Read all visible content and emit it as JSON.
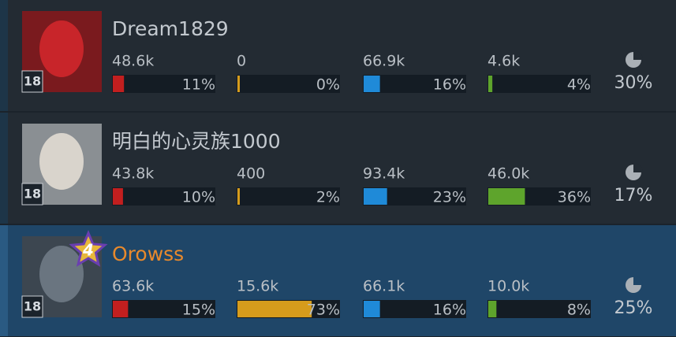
{
  "players": [
    {
      "name": "Dream1829",
      "level": "18",
      "stats": [
        {
          "value": "48.6k",
          "percent": 11,
          "percent_label": "11%"
        },
        {
          "value": "0",
          "percent": 0,
          "percent_label": "0%"
        },
        {
          "value": "66.9k",
          "percent": 16,
          "percent_label": "16%"
        },
        {
          "value": "4.6k",
          "percent": 4,
          "percent_label": "4%"
        }
      ],
      "share": "30%"
    },
    {
      "name": "明白的心灵族1000",
      "level": "18",
      "stats": [
        {
          "value": "43.8k",
          "percent": 10,
          "percent_label": "10%"
        },
        {
          "value": "400",
          "percent": 2,
          "percent_label": "2%"
        },
        {
          "value": "93.4k",
          "percent": 23,
          "percent_label": "23%"
        },
        {
          "value": "46.0k",
          "percent": 36,
          "percent_label": "36%"
        }
      ],
      "share": "17%"
    },
    {
      "name": "Orowss",
      "level": "18",
      "badge": "4",
      "stats": [
        {
          "value": "63.6k",
          "percent": 15,
          "percent_label": "15%"
        },
        {
          "value": "15.6k",
          "percent": 73,
          "percent_label": "73%"
        },
        {
          "value": "66.1k",
          "percent": 16,
          "percent_label": "16%"
        },
        {
          "value": "10.0k",
          "percent": 8,
          "percent_label": "8%"
        }
      ],
      "share": "25%"
    }
  ]
}
